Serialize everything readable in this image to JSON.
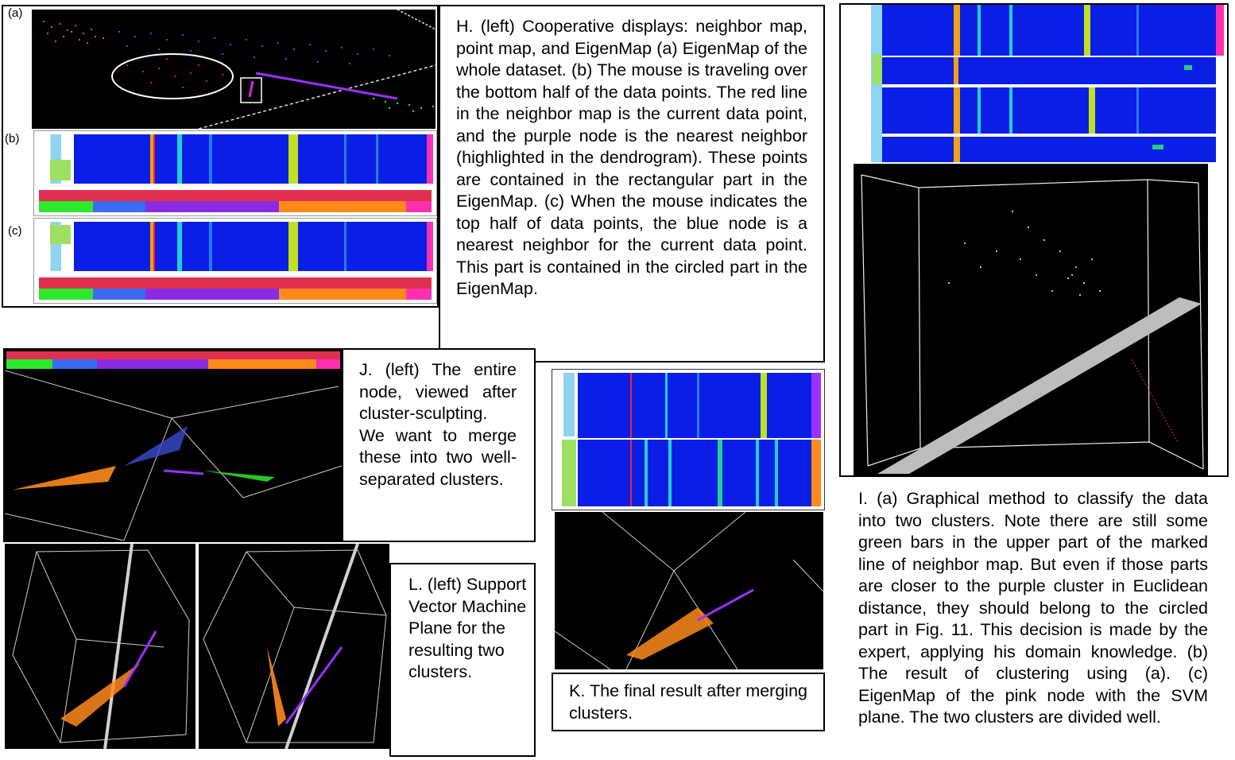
{
  "labels": {
    "a": "(a)",
    "b": "(b)",
    "c": "(c)"
  },
  "captions": {
    "H": "H. (left) Cooperative displays: neighbor map, point map, and EigenMap (a) EigenMap of the whole dataset. (b) The mouse is traveling over the bottom half of the data points. The red line in the neighbor map is the current data point, and the purple node is the nearest neighbor (highlighted in the dendrogram). These points are contained in the rectangular part in the EigenMap. (c) When the mouse indicates the top half of data points, the blue node is a nearest neighbor for the current data point. This part is contained in the circled part in the EigenMap.",
    "J": "J. (left) The entire node, viewed after cluster-sculpting. We want to merge these into two well-separated clusters.",
    "L": "L. (left) Support Vector Machine Plane for the resulting two clusters.",
    "K": "K. The final result after merging clusters.",
    "I": "I. (a) Graphical method to classify the data into two clusters. Note there are still some green bars in the upper part of the marked line of neighbor map. But even if those parts are closer to the purple cluster in Euclidean distance, they should belong to the circled part in Fig. 11. This decision is made by the expert, applying his domain knowledge. (b) The result of clustering using (a). (c) EigenMap of the pink node with the SVM plane. The two clusters are divided well."
  },
  "colors": {
    "heat_bg": "#0a1ee6",
    "cluster_orange": "#ff8a1a",
    "cluster_green": "#2ee82e",
    "cluster_purple": "#8a2be2",
    "cluster_blue": "#3a6bf0",
    "cluster_pink": "#ff2fb0",
    "svm_plane": "#bdbdbd"
  }
}
